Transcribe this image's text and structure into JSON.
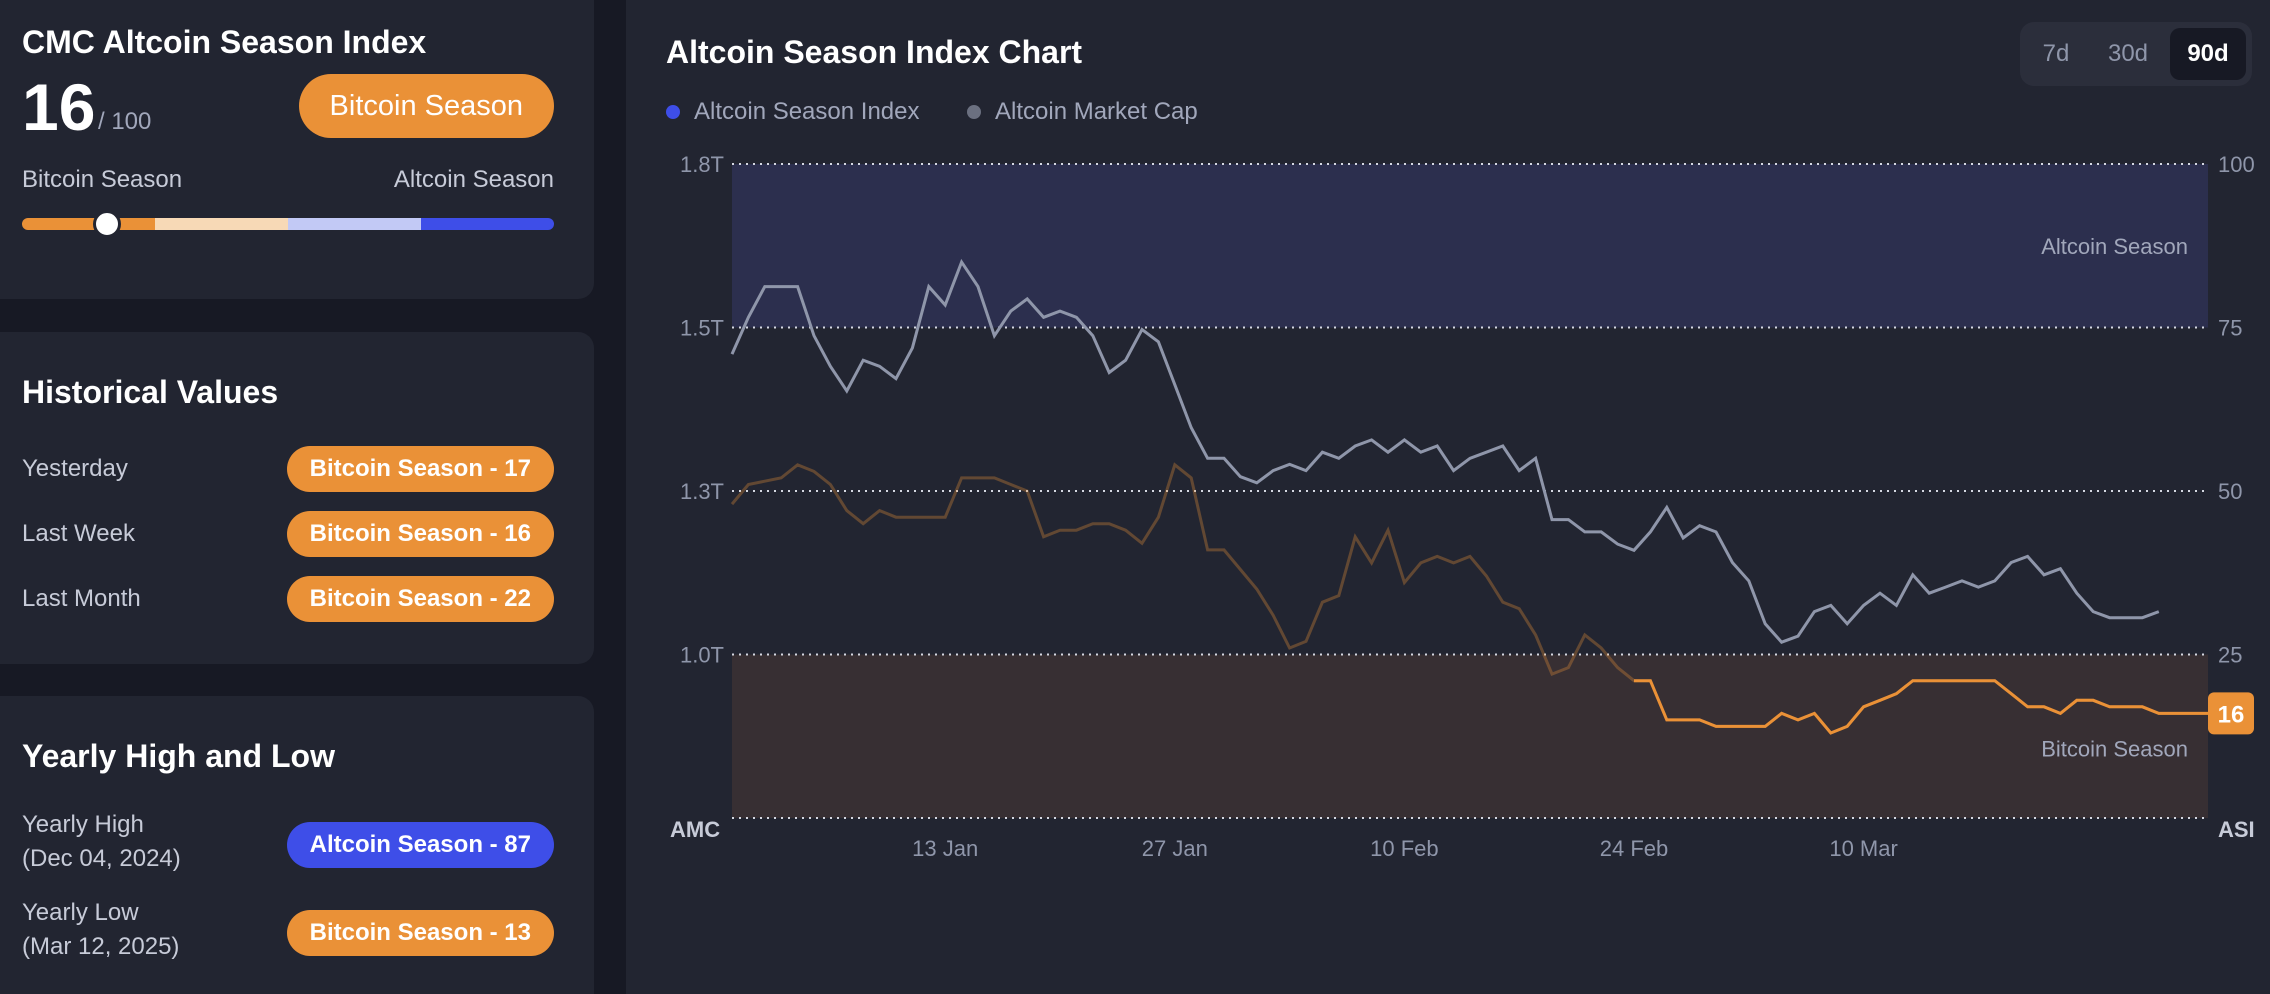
{
  "index_card": {
    "title": "CMC Altcoin Season Index",
    "value": "16",
    "max": "/ 100",
    "season_label": "Bitcoin Season",
    "scale_left": "Bitcoin Season",
    "scale_right": "Altcoin Season",
    "scale_value": 16,
    "scale_colors": [
      "#ea9137",
      "#f7d9b6",
      "#c2c9f5",
      "#3e4ee8"
    ]
  },
  "historical": {
    "title": "Historical Values",
    "rows": [
      {
        "label": "Yesterday",
        "value": "Bitcoin Season - 17"
      },
      {
        "label": "Last Week",
        "value": "Bitcoin Season - 16"
      },
      {
        "label": "Last Month",
        "value": "Bitcoin Season - 22"
      }
    ]
  },
  "yearly": {
    "title": "Yearly High and Low",
    "high_label": "Yearly High",
    "high_date": "(Dec 04, 2024)",
    "high_value": "Altcoin Season - 87",
    "low_label": "Yearly Low",
    "low_date": "(Mar 12, 2025)",
    "low_value": "Bitcoin Season - 13"
  },
  "main": {
    "title": "Altcoin Season Index Chart",
    "ranges": [
      "7d",
      "30d",
      "90d"
    ],
    "active_range": "90d"
  },
  "colors": {
    "bitcoin": "#ea9137",
    "altcoin": "#3e4ee8",
    "market_cap": "#8f96aa",
    "altcoin_zone": "#2c2f4e",
    "bitcoin_zone": "#372f33"
  },
  "chart_data": {
    "type": "line",
    "legend": [
      "Altcoin Season Index",
      "Altcoin Market Cap"
    ],
    "left_axis_ticks": [
      "1.8T",
      "1.5T",
      "1.3T",
      "1.0T"
    ],
    "right_axis_ticks": [
      "100",
      "75",
      "50",
      "25"
    ],
    "left_corner": "AMC",
    "right_corner": "ASI",
    "x_ticks": [
      "13 Jan",
      "27 Jan",
      "10 Feb",
      "24 Feb",
      "10 Mar"
    ],
    "zones": {
      "altcoin": "Altcoin Season",
      "bitcoin": "Bitcoin Season"
    },
    "current_value": "16",
    "ylim_left_index": [
      0,
      100
    ],
    "x_range_days": [
      -13,
      77
    ],
    "altcoin_season_index": [
      [
        -13,
        48
      ],
      [
        -12,
        51
      ],
      [
        -10,
        52
      ],
      [
        -9,
        54
      ],
      [
        -8,
        53
      ],
      [
        -7,
        51
      ],
      [
        -6,
        47
      ],
      [
        -5,
        45
      ],
      [
        -4,
        47
      ],
      [
        -3,
        46
      ],
      [
        -2,
        46
      ],
      [
        0,
        46
      ],
      [
        1,
        52
      ],
      [
        2,
        52
      ],
      [
        3,
        52
      ],
      [
        4,
        51
      ],
      [
        5,
        50
      ],
      [
        6,
        43
      ],
      [
        7,
        44
      ],
      [
        8,
        44
      ],
      [
        9,
        45
      ],
      [
        10,
        45
      ],
      [
        11,
        44
      ],
      [
        12,
        42
      ],
      [
        13,
        46
      ],
      [
        14,
        54
      ],
      [
        15,
        52
      ],
      [
        16,
        41
      ],
      [
        17,
        41
      ],
      [
        18,
        38
      ],
      [
        19,
        35
      ],
      [
        20,
        31
      ],
      [
        21,
        26
      ],
      [
        22,
        27
      ],
      [
        23,
        33
      ],
      [
        24,
        34
      ],
      [
        25,
        43
      ],
      [
        26,
        39
      ],
      [
        27,
        44
      ],
      [
        28,
        36
      ],
      [
        29,
        39
      ],
      [
        30,
        40
      ],
      [
        31,
        39
      ],
      [
        32,
        40
      ],
      [
        33,
        37
      ],
      [
        34,
        33
      ],
      [
        35,
        32
      ],
      [
        36,
        28
      ],
      [
        37,
        22
      ],
      [
        38,
        23
      ],
      [
        39,
        28
      ],
      [
        40,
        26
      ],
      [
        41,
        23
      ],
      [
        42,
        21
      ],
      [
        43,
        21
      ],
      [
        44,
        15
      ],
      [
        45,
        15
      ],
      [
        46,
        15
      ],
      [
        47,
        14
      ],
      [
        48,
        14
      ],
      [
        49,
        14
      ],
      [
        50,
        14
      ],
      [
        51,
        16
      ],
      [
        52,
        15
      ],
      [
        53,
        16
      ],
      [
        54,
        13
      ],
      [
        55,
        14
      ],
      [
        56,
        17
      ],
      [
        57,
        18
      ],
      [
        58,
        19
      ],
      [
        59,
        21
      ],
      [
        60,
        21
      ],
      [
        61,
        21
      ],
      [
        62,
        21
      ],
      [
        63,
        21
      ],
      [
        64,
        21
      ],
      [
        65,
        19
      ],
      [
        66,
        17
      ],
      [
        67,
        17
      ],
      [
        68,
        16
      ],
      [
        69,
        18
      ],
      [
        70,
        18
      ],
      [
        71,
        17
      ],
      [
        72,
        17
      ],
      [
        73,
        17
      ],
      [
        74,
        16
      ],
      [
        75,
        16
      ],
      [
        76,
        16
      ],
      [
        77,
        16
      ]
    ],
    "altcoin_market_cap": [
      [
        -13,
        1.49
      ],
      [
        -12,
        1.55
      ],
      [
        -11,
        1.6
      ],
      [
        -10,
        1.6
      ],
      [
        -9,
        1.6
      ],
      [
        -8,
        1.52
      ],
      [
        -7,
        1.47
      ],
      [
        -6,
        1.43
      ],
      [
        -5,
        1.48
      ],
      [
        -4,
        1.47
      ],
      [
        -3,
        1.45
      ],
      [
        -2,
        1.5
      ],
      [
        -1,
        1.6
      ],
      [
        0,
        1.57
      ],
      [
        1,
        1.64
      ],
      [
        2,
        1.6
      ],
      [
        3,
        1.52
      ],
      [
        4,
        1.56
      ],
      [
        5,
        1.58
      ],
      [
        6,
        1.55
      ],
      [
        7,
        1.56
      ],
      [
        8,
        1.55
      ],
      [
        9,
        1.52
      ],
      [
        10,
        1.46
      ],
      [
        11,
        1.48
      ],
      [
        12,
        1.53
      ],
      [
        13,
        1.51
      ],
      [
        14,
        1.44
      ],
      [
        15,
        1.37
      ],
      [
        16,
        1.32
      ],
      [
        17,
        1.32
      ],
      [
        18,
        1.29
      ],
      [
        19,
        1.28
      ],
      [
        20,
        1.3
      ],
      [
        21,
        1.31
      ],
      [
        22,
        1.3
      ],
      [
        23,
        1.33
      ],
      [
        24,
        1.32
      ],
      [
        25,
        1.34
      ],
      [
        26,
        1.35
      ],
      [
        27,
        1.33
      ],
      [
        28,
        1.35
      ],
      [
        29,
        1.33
      ],
      [
        30,
        1.34
      ],
      [
        31,
        1.3
      ],
      [
        32,
        1.32
      ],
      [
        33,
        1.33
      ],
      [
        34,
        1.34
      ],
      [
        35,
        1.3
      ],
      [
        36,
        1.32
      ],
      [
        37,
        1.22
      ],
      [
        38,
        1.22
      ],
      [
        39,
        1.2
      ],
      [
        40,
        1.2
      ],
      [
        41,
        1.18
      ],
      [
        42,
        1.17
      ],
      [
        43,
        1.2
      ],
      [
        44,
        1.24
      ],
      [
        45,
        1.19
      ],
      [
        46,
        1.21
      ],
      [
        47,
        1.2
      ],
      [
        48,
        1.15
      ],
      [
        49,
        1.12
      ],
      [
        50,
        1.05
      ],
      [
        51,
        1.02
      ],
      [
        52,
        1.03
      ],
      [
        53,
        1.07
      ],
      [
        54,
        1.08
      ],
      [
        55,
        1.05
      ],
      [
        56,
        1.08
      ],
      [
        57,
        1.1
      ],
      [
        58,
        1.08
      ],
      [
        59,
        1.13
      ],
      [
        60,
        1.1
      ],
      [
        61,
        1.11
      ],
      [
        62,
        1.12
      ],
      [
        63,
        1.11
      ],
      [
        64,
        1.12
      ],
      [
        65,
        1.15
      ],
      [
        66,
        1.16
      ],
      [
        67,
        1.13
      ],
      [
        68,
        1.14
      ],
      [
        69,
        1.1
      ],
      [
        70,
        1.07
      ],
      [
        71,
        1.06
      ],
      [
        72,
        1.06
      ],
      [
        73,
        1.06
      ],
      [
        74,
        1.07
      ]
    ]
  }
}
